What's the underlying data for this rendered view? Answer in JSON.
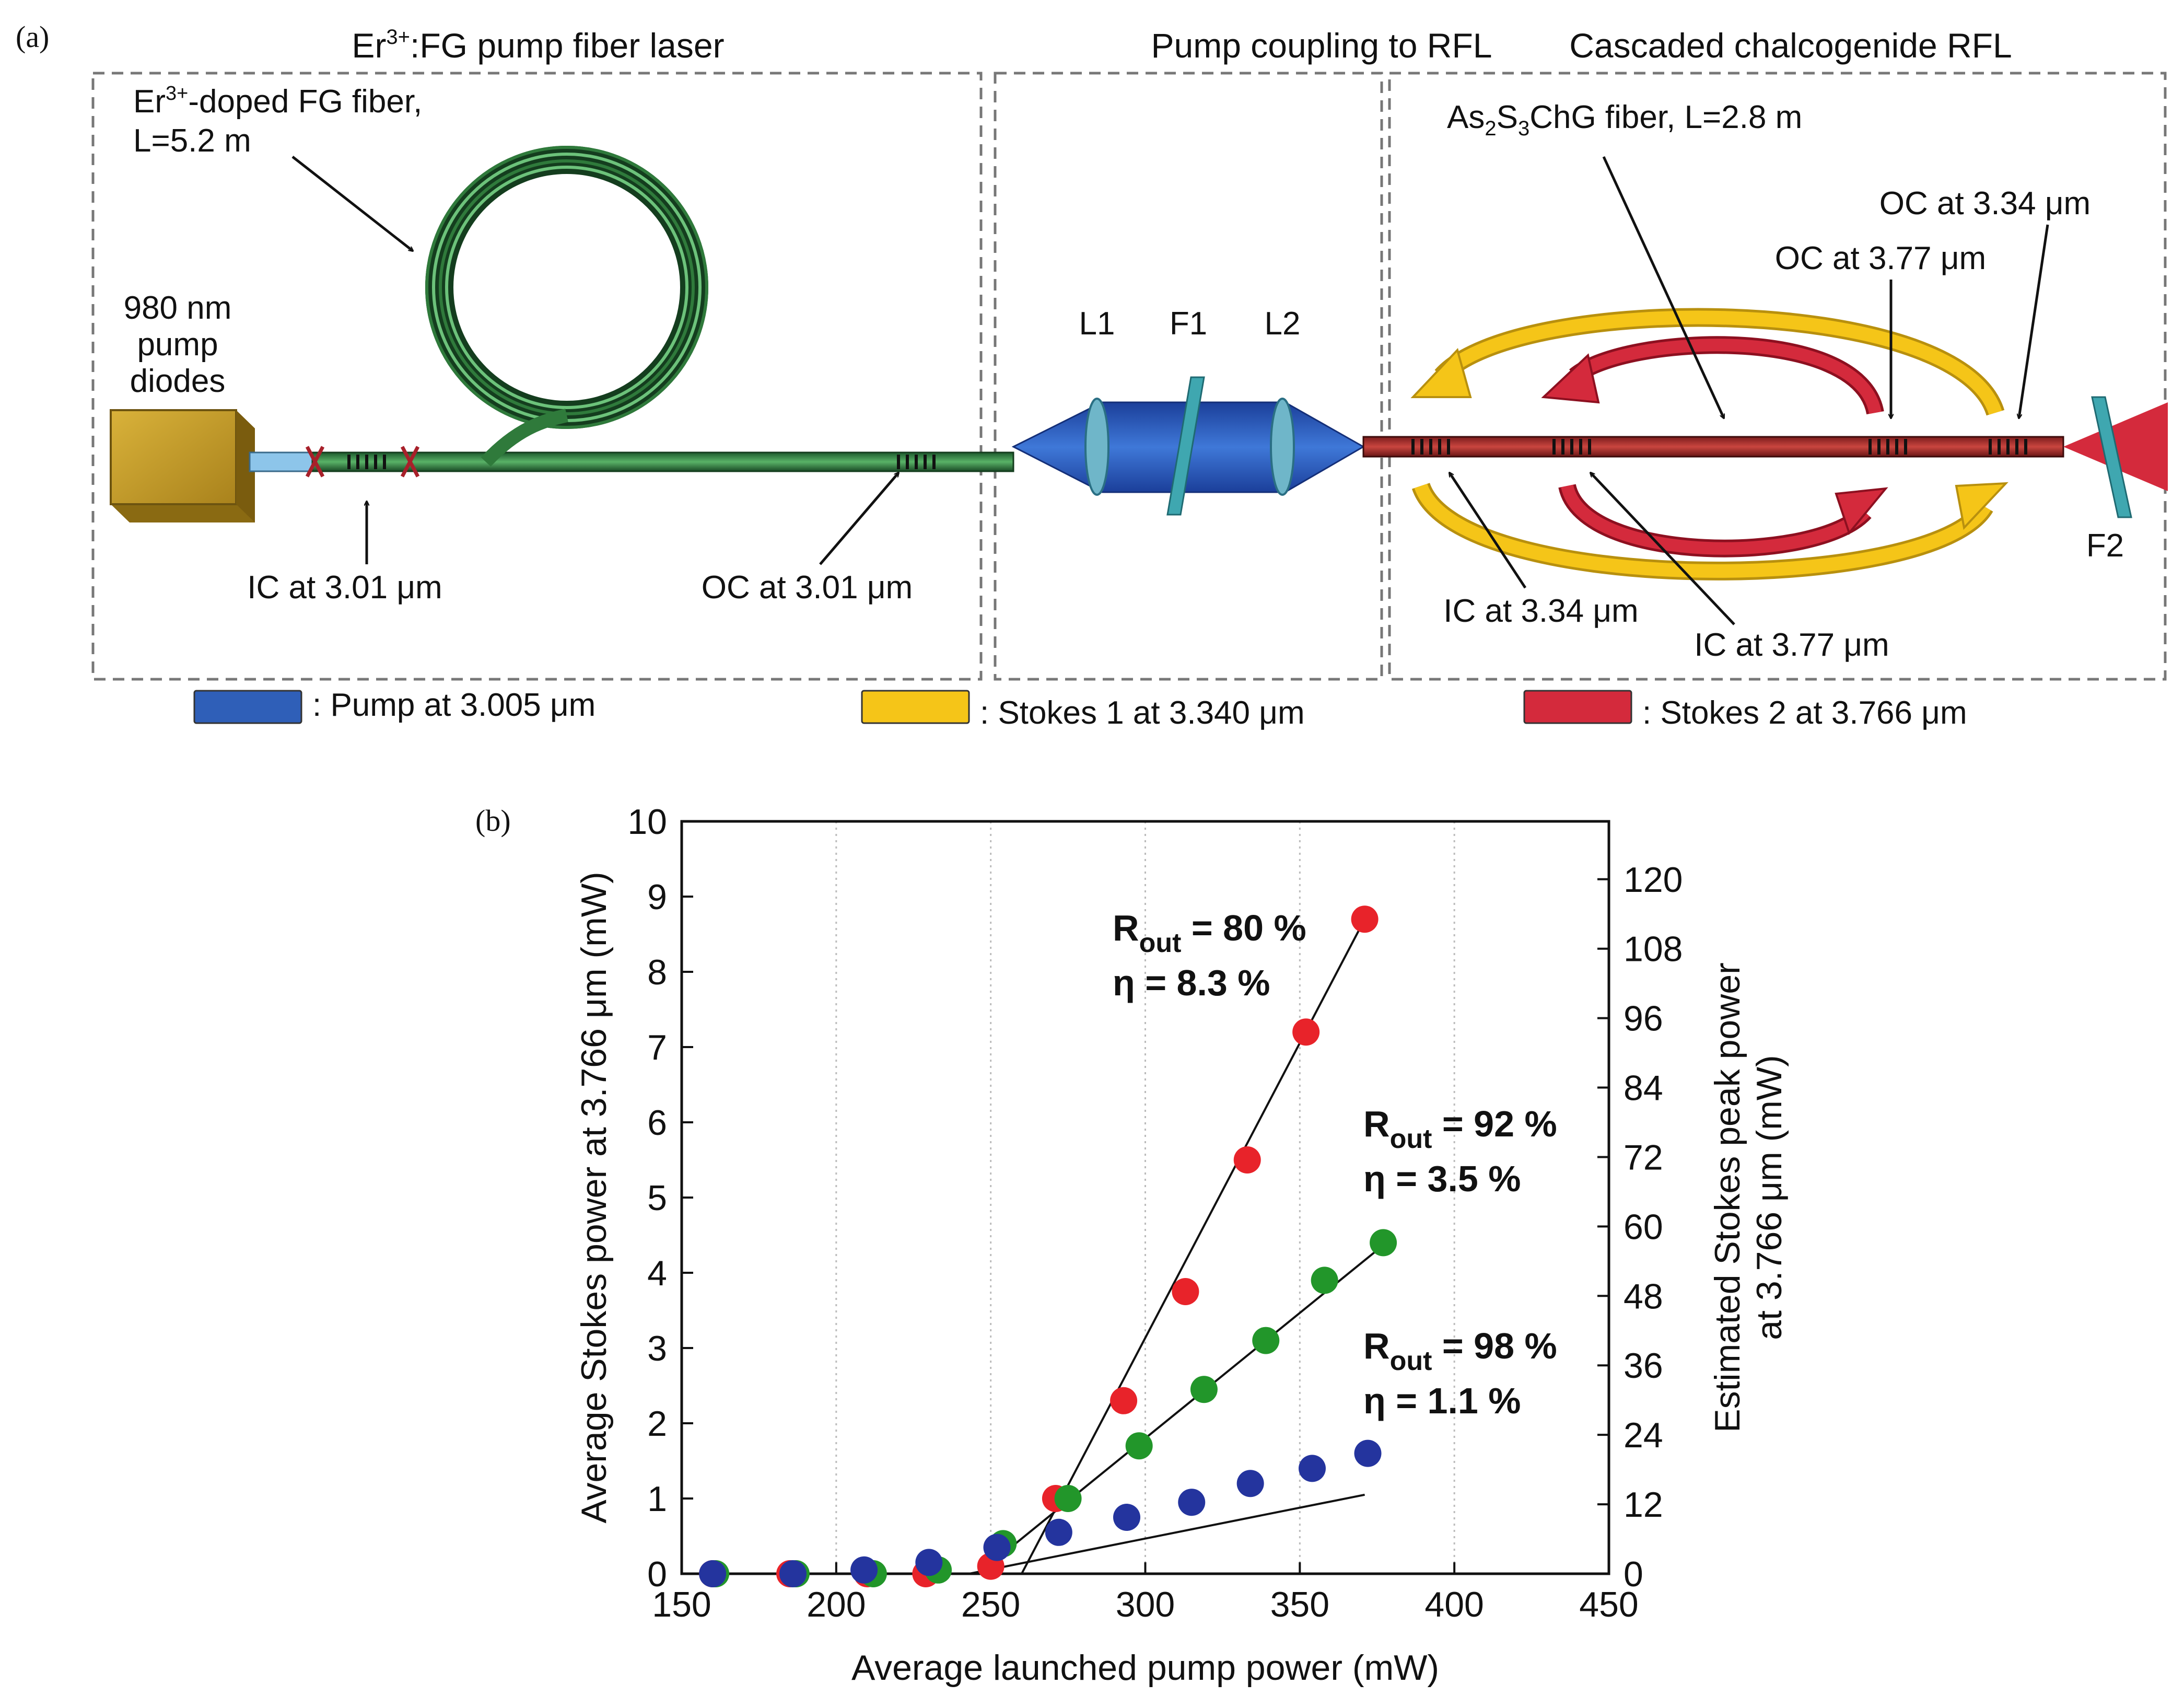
{
  "panel_a": {
    "tag": "(a)",
    "sections": {
      "pump_laser": {
        "title_prefix": "Er",
        "title_sup": "3+",
        "title_suffix": ":FG pump fiber laser"
      },
      "coupling": {
        "title": "Pump coupling to RFL"
      },
      "rfl": {
        "title": "Cascaded chalcogenide RFL"
      }
    },
    "labels": {
      "er_fiber_line1_prefix": "Er",
      "er_fiber_line1_sup": "3+",
      "er_fiber_line1_suffix": "-doped FG fiber,",
      "er_fiber_line2": "L=5.2 m",
      "pump_diodes_l1": "980 nm",
      "pump_diodes_l2": "pump",
      "pump_diodes_l3": "diodes",
      "ic_301": "IC at 3.01 μm",
      "oc_301": "OC at 3.01 μm",
      "l1": "L1",
      "f1": "F1",
      "l2": "L2",
      "as2s3_a": "As",
      "as2s3_b": "2",
      "as2s3_c": "S",
      "as2s3_d": "3",
      "as2s3_e": "ChG fiber, L=2.8 m",
      "oc_334": "OC at 3.34 μm",
      "oc_377": "OC at 3.77 μm",
      "ic_334": "IC at 3.34 μm",
      "ic_377": "IC at 3.77 μm",
      "f2": "F2"
    },
    "legend": [
      {
        "label": ": Pump at 3.005 μm",
        "color": "#2f5fb8"
      },
      {
        "label": ": Stokes 1 at 3.340 μm",
        "color": "#f5c518"
      },
      {
        "label": ": Stokes 2 at 3.766 μm",
        "color": "#d42a3c"
      }
    ]
  },
  "panel_b": {
    "tag": "(b)"
  },
  "chart_data": {
    "type": "scatter",
    "xlabel": "Average launched pump power (mW)",
    "ylabel": "Average Stokes power at 3.766 μm (mW)",
    "y2label_line1": "Estimated Stokes peak power",
    "y2label_line2": "at 3.766 μm (mW)",
    "xlim": [
      150,
      450
    ],
    "ylim": [
      0,
      10
    ],
    "y2lim": [
      0,
      130
    ],
    "x_ticks": [
      150,
      200,
      250,
      300,
      350,
      400,
      450
    ],
    "y_ticks": [
      0,
      1,
      2,
      3,
      4,
      5,
      6,
      7,
      8,
      9,
      10
    ],
    "y2_ticks": [
      0,
      12,
      24,
      36,
      48,
      60,
      72,
      84,
      96,
      108,
      120
    ],
    "grid": "vertical dotted",
    "series": [
      {
        "color": "#e8232a",
        "label_text": "R",
        "label_sub": "out",
        "label_value": " = 80 %",
        "eta": "η = 8.3 %",
        "points": [
          [
            160,
            0.0
          ],
          [
            185,
            0.0
          ],
          [
            210,
            0.0
          ],
          [
            229,
            0.0
          ],
          [
            250,
            0.1
          ],
          [
            271,
            1.0
          ],
          [
            293,
            2.3
          ],
          [
            313,
            3.75
          ],
          [
            333,
            5.5
          ],
          [
            352,
            7.2
          ],
          [
            371,
            8.7
          ]
        ],
        "fit": [
          [
            260,
            0.0
          ],
          [
            371,
            8.7
          ]
        ]
      },
      {
        "color": "#22962a",
        "label_text": "R",
        "label_sub": "out",
        "label_value": " = 92 %",
        "eta": "η = 3.5 %",
        "points": [
          [
            161,
            0.0
          ],
          [
            187,
            0.0
          ],
          [
            212,
            0.0
          ],
          [
            233,
            0.05
          ],
          [
            254,
            0.4
          ],
          [
            275,
            1.0
          ],
          [
            298,
            1.7
          ],
          [
            319,
            2.45
          ],
          [
            339,
            3.1
          ],
          [
            358,
            3.9
          ],
          [
            377,
            4.4
          ]
        ],
        "fit": [
          [
            246,
            0.0
          ],
          [
            375,
            4.3
          ]
        ]
      },
      {
        "color": "#24349e",
        "label_text": "R",
        "label_sub": "out",
        "label_value": " = 98 %",
        "eta": "η = 1.1 %",
        "points": [
          [
            160,
            0.0
          ],
          [
            186,
            0.0
          ],
          [
            209,
            0.05
          ],
          [
            230,
            0.15
          ],
          [
            252,
            0.35
          ],
          [
            272,
            0.55
          ],
          [
            294,
            0.75
          ],
          [
            315,
            0.95
          ],
          [
            334,
            1.2
          ],
          [
            354,
            1.4
          ],
          [
            372,
            1.6
          ]
        ],
        "fit": [
          [
            243,
            0.0
          ],
          [
            371,
            1.05
          ]
        ]
      }
    ],
    "baseline": [
      [
        150,
        0.0
      ],
      [
        243,
        0.0
      ]
    ]
  }
}
